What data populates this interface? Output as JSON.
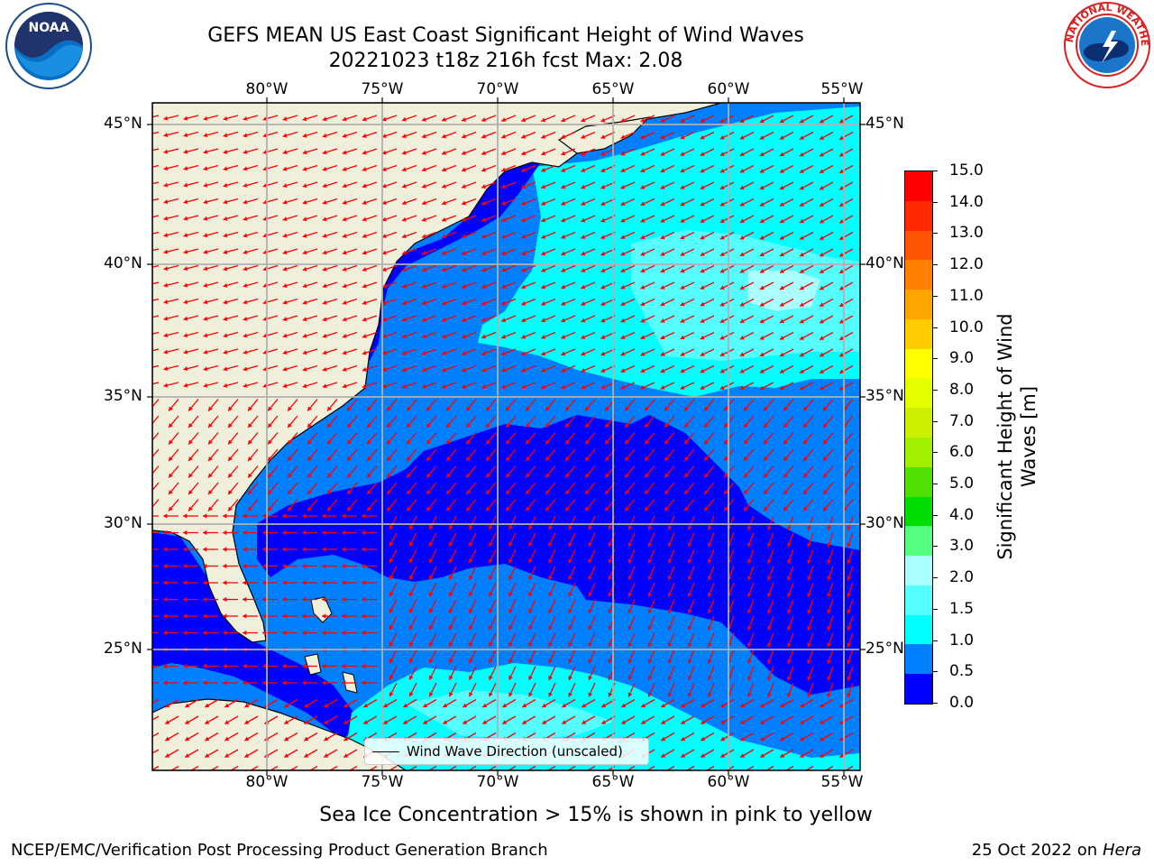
{
  "header": {
    "title_line1": "GEFS MEAN US East Coast Significant Height of Wind Waves",
    "title_line2": "20221023 t18z 216h fcst   Max: 2.08"
  },
  "logos": {
    "noaa": "NOAA",
    "nws_ring": "NATIONAL WEATHER SERVICE"
  },
  "map": {
    "lon_labels": [
      "80°W",
      "75°W",
      "70°W",
      "65°W",
      "60°W",
      "55°W"
    ],
    "lat_labels": [
      "45°N",
      "40°N",
      "35°N",
      "30°N",
      "25°N"
    ],
    "legend_label": "Wind Wave Direction (unscaled)"
  },
  "colorbar": {
    "label": "Significant Height of Wind Waves [m]",
    "ticks": [
      "15.0",
      "14.0",
      "13.0",
      "12.0",
      "11.0",
      "10.0",
      "9.0",
      "8.0",
      "7.0",
      "6.0",
      "5.0",
      "4.0",
      "3.0",
      "2.0",
      "1.5",
      "1.0",
      "0.5",
      "0.0"
    ],
    "colors": [
      "#ff0000",
      "#ff2a00",
      "#ff5500",
      "#ff8000",
      "#ffa500",
      "#ffcc00",
      "#ffff00",
      "#e6ff00",
      "#ccf000",
      "#a0f000",
      "#50e000",
      "#00dd00",
      "#55ff80",
      "#aaffff",
      "#55ffff",
      "#00ffff",
      "#0080ff",
      "#0000ff"
    ]
  },
  "subtitle": "Sea Ice Concentration > 15% is shown in pink to yellow",
  "footer": {
    "left": "NCEP/EMC/Verification Post Processing Product Generation Branch",
    "right_date": "25 Oct 2022 on ",
    "right_host": "Hera"
  }
}
